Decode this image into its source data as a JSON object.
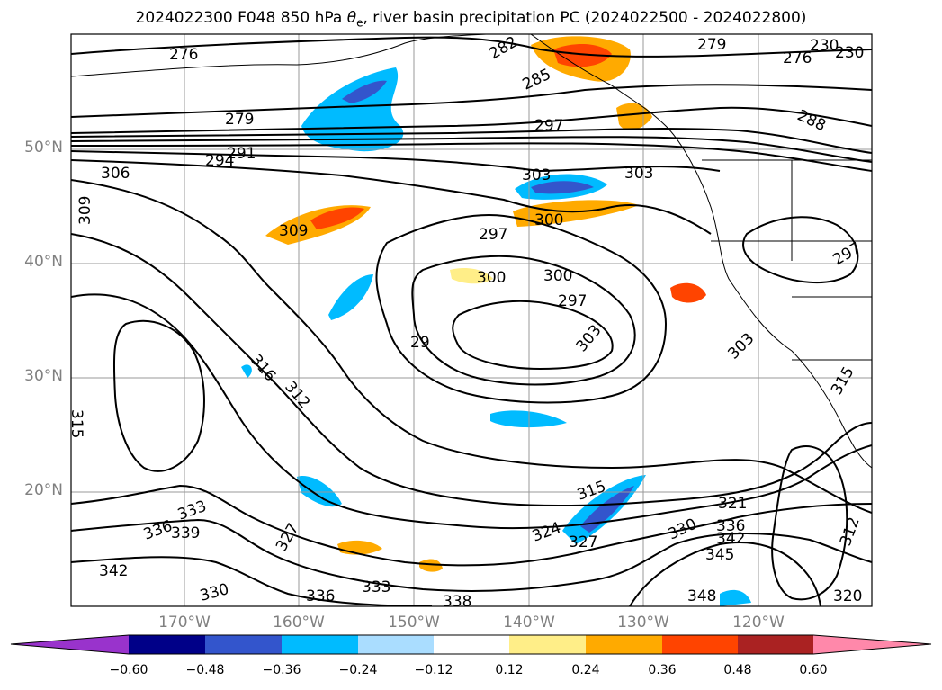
{
  "title": {
    "prefix": "2024022300 F048 850 hPa ",
    "symbol": "θ",
    "symbol_sub": "e",
    "suffix": ", river basin precipitation PC (2024022500 - 2024022800)"
  },
  "latitudes": [
    "50°N",
    "40°N",
    "30°N",
    "20°N"
  ],
  "longitudes": [
    "170°W",
    "160°W",
    "150°W",
    "140°W",
    "130°W",
    "120°W"
  ],
  "contour_labels": [
    "276",
    "276",
    "230",
    "230",
    "282",
    "279",
    "279",
    "285",
    "288",
    "297",
    "294",
    "291",
    "306",
    "303",
    "303",
    "309",
    "309",
    "300",
    "297",
    "297",
    "300",
    "297",
    "303",
    "303",
    "300",
    "29",
    "316",
    "312",
    "315",
    "315",
    "315",
    "321",
    "324",
    "327",
    "330",
    "336",
    "342",
    "345",
    "348",
    "336",
    "339",
    "333",
    "327",
    "342",
    "330",
    "333",
    "336",
    "338",
    "312",
    "320"
  ],
  "colorbar": {
    "ticks": [
      "−0.60",
      "−0.48",
      "−0.36",
      "−0.24",
      "−0.12",
      "0.12",
      "0.24",
      "0.36",
      "0.48",
      "0.60"
    ],
    "colors": [
      "#9933cc",
      "#000088",
      "#3355cc",
      "#00bbff",
      "#aaddff",
      "#ffffff",
      "#ffee88",
      "#ffaa00",
      "#ff4400",
      "#aa2222",
      "#ff88aa"
    ]
  },
  "shading_colors": {
    "negative_light": "#aaddff",
    "negative_mid": "#00bbff",
    "negative_strong": "#3355cc",
    "positive_light": "#ffee88",
    "positive_mid": "#ffaa00",
    "positive_strong": "#ff4400"
  }
}
